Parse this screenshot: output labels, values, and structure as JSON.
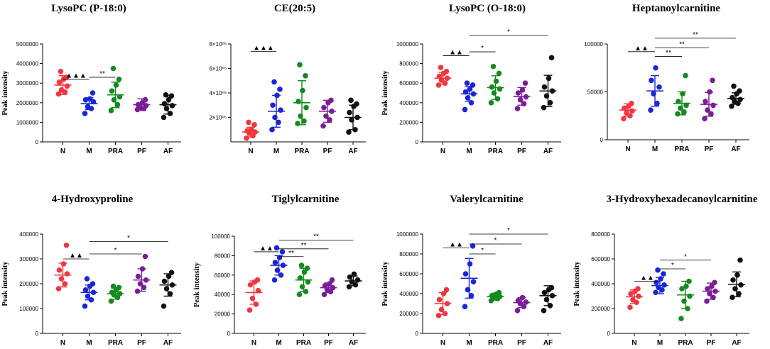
{
  "colors": {
    "N": "#f0373f",
    "M": "#1a26d6",
    "PRA": "#138a1e",
    "PF": "#7a1d96",
    "AF": "#111111"
  },
  "chart_data": [
    {
      "type": "scatter",
      "title": "LysoPC (P-18:0)",
      "ylabel": "Peak intensity",
      "categories": [
        "N",
        "M",
        "PRA",
        "PF",
        "AF"
      ],
      "ylim": [
        0,
        5000000
      ],
      "yticks": [
        0,
        1000000,
        2000000,
        3000000,
        4000000,
        5000000
      ],
      "ytick_labels": [
        "0",
        "1000000",
        "2000000",
        "3000000",
        "4000000",
        "5000000"
      ],
      "series": [
        {
          "name": "N",
          "mean": 2900000,
          "sd": 480000,
          "points": [
            2450000,
            2550000,
            2650000,
            2850000,
            3050000,
            3200000,
            3300000,
            3600000
          ]
        },
        {
          "name": "M",
          "mean": 1950000,
          "sd": 300000,
          "points": [
            1450000,
            1700000,
            1800000,
            2050000,
            2150000,
            2200000,
            2500000
          ]
        },
        {
          "name": "PRA",
          "mean": 2400000,
          "sd": 650000,
          "points": [
            1600000,
            1900000,
            2150000,
            2300000,
            2600000,
            2900000,
            3200000,
            3750000
          ]
        },
        {
          "name": "PF",
          "mean": 1900000,
          "sd": 300000,
          "points": [
            1650000,
            1700000,
            1750000,
            1850000,
            1900000,
            2000000,
            2150000
          ]
        },
        {
          "name": "AF",
          "mean": 1900000,
          "sd": 480000,
          "points": [
            1250000,
            1450000,
            1700000,
            1850000,
            1950000,
            2150000,
            2350000,
            2400000
          ]
        }
      ],
      "annotations": [
        {
          "from": "N",
          "to": "M",
          "label": "▲▲▲",
          "y": 3200000
        },
        {
          "from": "M",
          "to": "PRA",
          "label": "**",
          "y": 3300000
        }
      ]
    },
    {
      "type": "scatter",
      "title": "CE(20:5)",
      "ylabel": "",
      "categories": [
        "N",
        "M",
        "PRA",
        "PF",
        "AF"
      ],
      "ylim": [
        0,
        8
      ],
      "yticks": [
        2,
        4,
        6,
        8
      ],
      "ytick_labels": [
        "2×10⁰⁶",
        "4×10⁰⁶",
        "6×10⁰⁶",
        "8×10⁰⁶"
      ],
      "series": [
        {
          "name": "N",
          "mean": 0.8,
          "sd": 0.4,
          "points": [
            0.3,
            0.5,
            0.7,
            0.8,
            0.9,
            1.0,
            1.4,
            1.6
          ]
        },
        {
          "name": "M",
          "mean": 2.5,
          "sd": 1.3,
          "points": [
            1.0,
            1.6,
            2.0,
            2.6,
            3.0,
            3.8,
            4.3,
            4.9
          ]
        },
        {
          "name": "PRA",
          "mean": 3.2,
          "sd": 1.8,
          "points": [
            1.5,
            1.7,
            2.1,
            2.8,
            3.3,
            4.2,
            5.4,
            6.3
          ]
        },
        {
          "name": "PF",
          "mean": 2.5,
          "sd": 0.9,
          "points": [
            1.3,
            1.8,
            2.1,
            2.5,
            2.8,
            3.2,
            3.4
          ]
        },
        {
          "name": "AF",
          "mean": 2.0,
          "sd": 1.0,
          "points": [
            0.8,
            1.0,
            1.8,
            2.0,
            2.4,
            2.9,
            3.1,
            3.4
          ]
        }
      ],
      "annotations": [
        {
          "from": "N",
          "to": "M",
          "label": "▲▲▲",
          "y": 7.4
        }
      ]
    },
    {
      "type": "scatter",
      "title": "LysoPC (O-18:0)",
      "ylabel": "Peak intensity",
      "categories": [
        "N",
        "M",
        "PRA",
        "PF",
        "AF"
      ],
      "ylim": [
        0,
        1000000
      ],
      "yticks": [
        0,
        200000,
        400000,
        600000,
        800000,
        1000000
      ],
      "ytick_labels": [
        "0",
        "200000",
        "400000",
        "600000",
        "800000",
        "1000000"
      ],
      "series": [
        {
          "name": "N",
          "mean": 650000,
          "sd": 60000,
          "points": [
            580000,
            600000,
            630000,
            650000,
            670000,
            700000,
            720000,
            760000
          ]
        },
        {
          "name": "M",
          "mean": 490000,
          "sd": 75000,
          "points": [
            330000,
            400000,
            450000,
            490000,
            510000,
            540000,
            580000,
            600000
          ]
        },
        {
          "name": "PRA",
          "mean": 555000,
          "sd": 120000,
          "points": [
            400000,
            440000,
            500000,
            540000,
            560000,
            620000,
            700000,
            770000
          ]
        },
        {
          "name": "PF",
          "mean": 465000,
          "sd": 90000,
          "points": [
            340000,
            390000,
            430000,
            460000,
            500000,
            530000,
            600000
          ]
        },
        {
          "name": "AF",
          "mean": 520000,
          "sd": 160000,
          "points": [
            350000,
            400000,
            470000,
            520000,
            560000,
            650000,
            860000
          ]
        }
      ],
      "annotations": [
        {
          "from": "N",
          "to": "M",
          "label": "▲▲",
          "y": 880000
        },
        {
          "from": "M",
          "to": "PRA",
          "label": "*",
          "y": 920000
        },
        {
          "from": "M",
          "to": "AF",
          "label": "*",
          "y": 1100000
        }
      ]
    },
    {
      "type": "scatter",
      "title": "Heptanoylcarnitine",
      "ylabel": "",
      "categories": [
        "N",
        "M",
        "PRA",
        "PF",
        "AF"
      ],
      "ylim": [
        0,
        100000
      ],
      "yticks": [
        0,
        50000,
        100000
      ],
      "ytick_labels": [
        "0",
        "50000",
        "100000"
      ],
      "series": [
        {
          "name": "N",
          "mean": 31000,
          "sd": 6500,
          "points": [
            22000,
            25000,
            28000,
            30000,
            33000,
            35000,
            38000
          ]
        },
        {
          "name": "M",
          "mean": 51000,
          "sd": 16000,
          "points": [
            31000,
            38000,
            48000,
            55000,
            62000,
            75000
          ]
        },
        {
          "name": "PRA",
          "mean": 38000,
          "sd": 12000,
          "points": [
            27000,
            29000,
            33000,
            36000,
            40000,
            48000,
            67000
          ]
        },
        {
          "name": "PF",
          "mean": 37000,
          "sd": 12500,
          "points": [
            22000,
            27000,
            31000,
            36000,
            40000,
            50000,
            62000
          ]
        },
        {
          "name": "AF",
          "mean": 43000,
          "sd": 6000,
          "points": [
            35000,
            38000,
            40000,
            42000,
            44000,
            48000,
            51000,
            56000
          ]
        }
      ],
      "annotations": [
        {
          "from": "N",
          "to": "M",
          "label": "▲▲",
          "y": 92000
        },
        {
          "from": "M",
          "to": "PRA",
          "label": "**",
          "y": 87000
        },
        {
          "from": "M",
          "to": "PF",
          "label": "**",
          "y": 96000
        },
        {
          "from": "M",
          "to": "AF",
          "label": "**",
          "y": 106000
        }
      ]
    },
    {
      "type": "scatter",
      "title": "4-Hydroxyproline",
      "ylabel": "Peak intensity",
      "categories": [
        "N",
        "M",
        "PRA",
        "PF",
        "AF"
      ],
      "ylim": [
        0,
        400000
      ],
      "yticks": [
        0,
        100000,
        200000,
        300000,
        400000
      ],
      "ytick_labels": [
        "0",
        "100000",
        "200000",
        "300000",
        "400000"
      ],
      "series": [
        {
          "name": "N",
          "mean": 235000,
          "sd": 48000,
          "points": [
            180000,
            200000,
            220000,
            240000,
            255000,
            280000,
            355000
          ]
        },
        {
          "name": "M",
          "mean": 165000,
          "sd": 30000,
          "points": [
            110000,
            135000,
            150000,
            165000,
            175000,
            190000,
            200000,
            220000
          ]
        },
        {
          "name": "PRA",
          "mean": 160000,
          "sd": 22000,
          "points": [
            130000,
            145000,
            155000,
            160000,
            165000,
            175000,
            185000,
            190000
          ]
        },
        {
          "name": "PF",
          "mean": 215000,
          "sd": 45000,
          "points": [
            170000,
            185000,
            200000,
            215000,
            230000,
            260000,
            310000
          ]
        },
        {
          "name": "AF",
          "mean": 195000,
          "sd": 45000,
          "points": [
            110000,
            160000,
            180000,
            195000,
            210000,
            230000,
            245000
          ]
        }
      ],
      "annotations": [
        {
          "from": "N",
          "to": "M",
          "label": "▲▲",
          "y": 300000
        },
        {
          "from": "M",
          "to": "PF",
          "label": "*",
          "y": 320000
        },
        {
          "from": "M",
          "to": "AF",
          "label": "*",
          "y": 370000
        }
      ]
    },
    {
      "type": "scatter",
      "title": "Tiglylcarnitine",
      "ylabel": "Peak intensity",
      "categories": [
        "N",
        "M",
        "PRA",
        "PF",
        "AF"
      ],
      "ylim": [
        0,
        100000
      ],
      "yticks": [
        0,
        20000,
        40000,
        60000,
        80000,
        100000
      ],
      "ytick_labels": [
        "0",
        "20000",
        "40000",
        "60000",
        "80000",
        "100000"
      ],
      "series": [
        {
          "name": "N",
          "mean": 42000,
          "sd": 12000,
          "points": [
            24000,
            30000,
            36000,
            44000,
            50000,
            53000,
            55000
          ]
        },
        {
          "name": "M",
          "mean": 70000,
          "sd": 10000,
          "points": [
            55000,
            60000,
            65000,
            70000,
            73000,
            78000,
            84000,
            88000
          ]
        },
        {
          "name": "PRA",
          "mean": 55000,
          "sd": 12000,
          "points": [
            40000,
            43000,
            48000,
            53000,
            57000,
            63000,
            67000,
            70000
          ]
        },
        {
          "name": "PF",
          "mean": 47000,
          "sd": 5000,
          "points": [
            40000,
            43000,
            45000,
            47000,
            49000,
            51000,
            55000
          ]
        },
        {
          "name": "AF",
          "mean": 54000,
          "sd": 5000,
          "points": [
            48000,
            50000,
            53000,
            55000,
            58000,
            61000
          ]
        }
      ],
      "annotations": [
        {
          "from": "N",
          "to": "M",
          "label": "▲▲",
          "y": 84000
        },
        {
          "from": "M",
          "to": "PRA",
          "label": "**",
          "y": 79000
        },
        {
          "from": "M",
          "to": "PF",
          "label": "**",
          "y": 87000
        },
        {
          "from": "M",
          "to": "AF",
          "label": "**",
          "y": 96000
        }
      ]
    },
    {
      "type": "scatter",
      "title": "Valerylcarnitine",
      "ylabel": "Peak intensity",
      "categories": [
        "N",
        "M",
        "PRA",
        "PF",
        "AF"
      ],
      "ylim": [
        0,
        1000000
      ],
      "yticks": [
        0,
        200000,
        400000,
        600000,
        800000,
        1000000
      ],
      "ytick_labels": [
        "0",
        "200000",
        "400000",
        "600000",
        "800000",
        "1000000"
      ],
      "series": [
        {
          "name": "N",
          "mean": 300000,
          "sd": 110000,
          "points": [
            180000,
            200000,
            240000,
            300000,
            340000,
            400000,
            440000
          ]
        },
        {
          "name": "M",
          "mean": 555000,
          "sd": 200000,
          "points": [
            270000,
            380000,
            440000,
            520000,
            600000,
            700000,
            880000
          ]
        },
        {
          "name": "PRA",
          "mean": 370000,
          "sd": 35000,
          "points": [
            330000,
            350000,
            360000,
            370000,
            380000,
            395000,
            410000
          ]
        },
        {
          "name": "PF",
          "mean": 310000,
          "sd": 50000,
          "points": [
            230000,
            270000,
            300000,
            315000,
            330000,
            360000
          ]
        },
        {
          "name": "AF",
          "mean": 380000,
          "sd": 100000,
          "points": [
            230000,
            280000,
            340000,
            380000,
            410000,
            440000,
            460000
          ]
        }
      ],
      "annotations": [
        {
          "from": "N",
          "to": "M",
          "label": "▲▲",
          "y": 860000
        },
        {
          "from": "M",
          "to": "PRA",
          "label": "*",
          "y": 800000
        },
        {
          "from": "M",
          "to": "PF",
          "label": "*",
          "y": 900000
        },
        {
          "from": "M",
          "to": "AF",
          "label": "*",
          "y": 1000000
        }
      ]
    },
    {
      "type": "scatter",
      "title": "3-Hydroxyhexadecanoylcarnitine",
      "ylabel": "Peak intensity",
      "categories": [
        "N",
        "M",
        "PRA",
        "PF",
        "AF"
      ],
      "ylim": [
        0,
        800000
      ],
      "yticks": [
        0,
        200000,
        400000,
        600000,
        800000
      ],
      "ytick_labels": [
        "0",
        "200000",
        "400000",
        "600000",
        "800000"
      ],
      "series": [
        {
          "name": "N",
          "mean": 295000,
          "sd": 55000,
          "points": [
            210000,
            250000,
            270000,
            300000,
            320000,
            340000,
            360000
          ]
        },
        {
          "name": "M",
          "mean": 385000,
          "sd": 65000,
          "points": [
            330000,
            350000,
            370000,
            390000,
            410000,
            440000,
            480000,
            510000
          ]
        },
        {
          "name": "PRA",
          "mean": 310000,
          "sd": 110000,
          "points": [
            120000,
            200000,
            260000,
            300000,
            360000,
            380000,
            420000
          ]
        },
        {
          "name": "PF",
          "mean": 340000,
          "sd": 65000,
          "points": [
            260000,
            290000,
            320000,
            340000,
            360000,
            380000,
            410000
          ]
        },
        {
          "name": "AF",
          "mean": 395000,
          "sd": 100000,
          "points": [
            290000,
            320000,
            360000,
            390000,
            430000,
            470000,
            590000
          ]
        }
      ],
      "annotations": [
        {
          "from": "N",
          "to": "M",
          "label": "▲▲",
          "y": 420000
        },
        {
          "from": "M",
          "to": "PRA",
          "label": "*",
          "y": 520000
        },
        {
          "from": "M",
          "to": "PF",
          "label": "*",
          "y": 590000
        }
      ]
    }
  ]
}
